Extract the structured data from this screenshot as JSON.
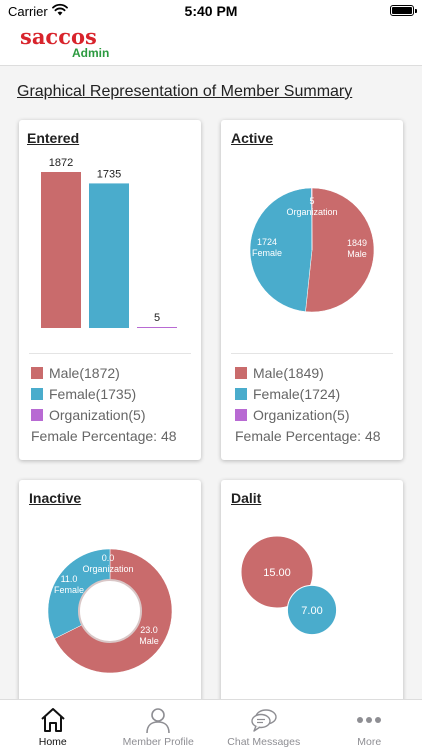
{
  "status_bar": {
    "carrier": "Carrier",
    "time": "5:40 PM"
  },
  "header": {
    "logo_brand": "saccos",
    "logo_sub": "Admin"
  },
  "page": {
    "title": "Graphical Representation of Member Summary"
  },
  "colors": {
    "male": "#c96b6c",
    "female": "#4aaccc",
    "organization": "#b86ad3"
  },
  "cards": {
    "entered": {
      "title": "Entered",
      "legend": {
        "male": "Male(1872)",
        "female": "Female(1735)",
        "organization": "Organization(5)"
      },
      "percentage": "Female Percentage: 48"
    },
    "active": {
      "title": "Active",
      "legend": {
        "male": "Male(1849)",
        "female": "Female(1724)",
        "organization": "Organization(5)"
      },
      "percentage": "Female Percentage: 48"
    },
    "inactive": {
      "title": "Inactive"
    },
    "dalit": {
      "title": "Dalit"
    }
  },
  "chart_data": [
    {
      "type": "bar",
      "title": "Entered",
      "categories": [
        "Male",
        "Female",
        "Organization"
      ],
      "values": [
        1872,
        1735,
        5
      ],
      "data_labels": [
        "1872",
        "1735",
        "5"
      ],
      "colors": [
        "#c96b6c",
        "#4aaccc",
        "#b86ad3"
      ]
    },
    {
      "type": "pie",
      "title": "Active",
      "categories": [
        "Male",
        "Female",
        "Organization"
      ],
      "values": [
        1849,
        1724,
        5
      ],
      "slice_labels": [
        [
          "1849",
          "Male"
        ],
        [
          "1724",
          "Female"
        ],
        [
          "5",
          "Organization"
        ]
      ],
      "colors": [
        "#c96b6c",
        "#4aaccc",
        "#b86ad3"
      ]
    },
    {
      "type": "pie",
      "subtype": "donut",
      "title": "Inactive",
      "categories": [
        "Male",
        "Female",
        "Organization"
      ],
      "values": [
        23.0,
        11.0,
        0.0
      ],
      "slice_labels": [
        [
          "23.0",
          "Male"
        ],
        [
          "11.0",
          "Female"
        ],
        [
          "0.0",
          "Organization"
        ]
      ],
      "colors": [
        "#c96b6c",
        "#4aaccc",
        "#b86ad3"
      ]
    },
    {
      "type": "scatter",
      "subtype": "bubble",
      "title": "Dalit",
      "categories": [
        "Male",
        "Female"
      ],
      "values": [
        15.0,
        7.0
      ],
      "data_labels": [
        "15.00",
        "7.00"
      ],
      "colors": [
        "#c96b6c",
        "#4aaccc"
      ]
    }
  ],
  "tab_bar": {
    "tabs": [
      {
        "label": "Home",
        "icon": "home-icon"
      },
      {
        "label": "Member Profile",
        "icon": "user-icon"
      },
      {
        "label": "Chat Messages",
        "icon": "chat-icon"
      },
      {
        "label": "More",
        "icon": "more-icon"
      }
    ]
  }
}
